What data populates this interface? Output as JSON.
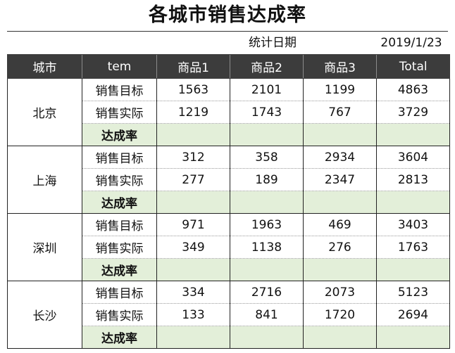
{
  "title": "各城市销售达成率",
  "date_label": "统计日期",
  "date_value": "2019/1/23",
  "headers": [
    "城市",
    "tem",
    "商品1",
    "商品2",
    "商品3",
    "Total"
  ],
  "groups": [
    {
      "city": "北京",
      "rows": [
        {
          "label": "销售目标",
          "values": [
            "1563",
            "2101",
            "1199",
            "4863"
          ]
        },
        {
          "label": "销售实际",
          "values": [
            "1219",
            "1743",
            "767",
            "3729"
          ]
        }
      ],
      "rate_label": "达成率"
    },
    {
      "city": "上海",
      "rows": [
        {
          "label": "销售目标",
          "values": [
            "312",
            "358",
            "2934",
            "3604"
          ]
        },
        {
          "label": "销售实际",
          "values": [
            "277",
            "189",
            "2347",
            "2813"
          ]
        }
      ],
      "rate_label": "达成率"
    },
    {
      "city": "深圳",
      "rows": [
        {
          "label": "销售目标",
          "values": [
            "971",
            "1963",
            "469",
            "3403"
          ]
        },
        {
          "label": "销售实际",
          "values": [
            "349",
            "1138",
            "276",
            "1763"
          ]
        }
      ],
      "rate_label": "达成率"
    },
    {
      "city": "长沙",
      "rows": [
        {
          "label": "销售目标",
          "values": [
            "334",
            "2716",
            "2073",
            "5123"
          ]
        },
        {
          "label": "销售实际",
          "values": [
            "133",
            "841",
            "1720",
            "2694"
          ]
        }
      ],
      "rate_label": "达成率"
    }
  ]
}
